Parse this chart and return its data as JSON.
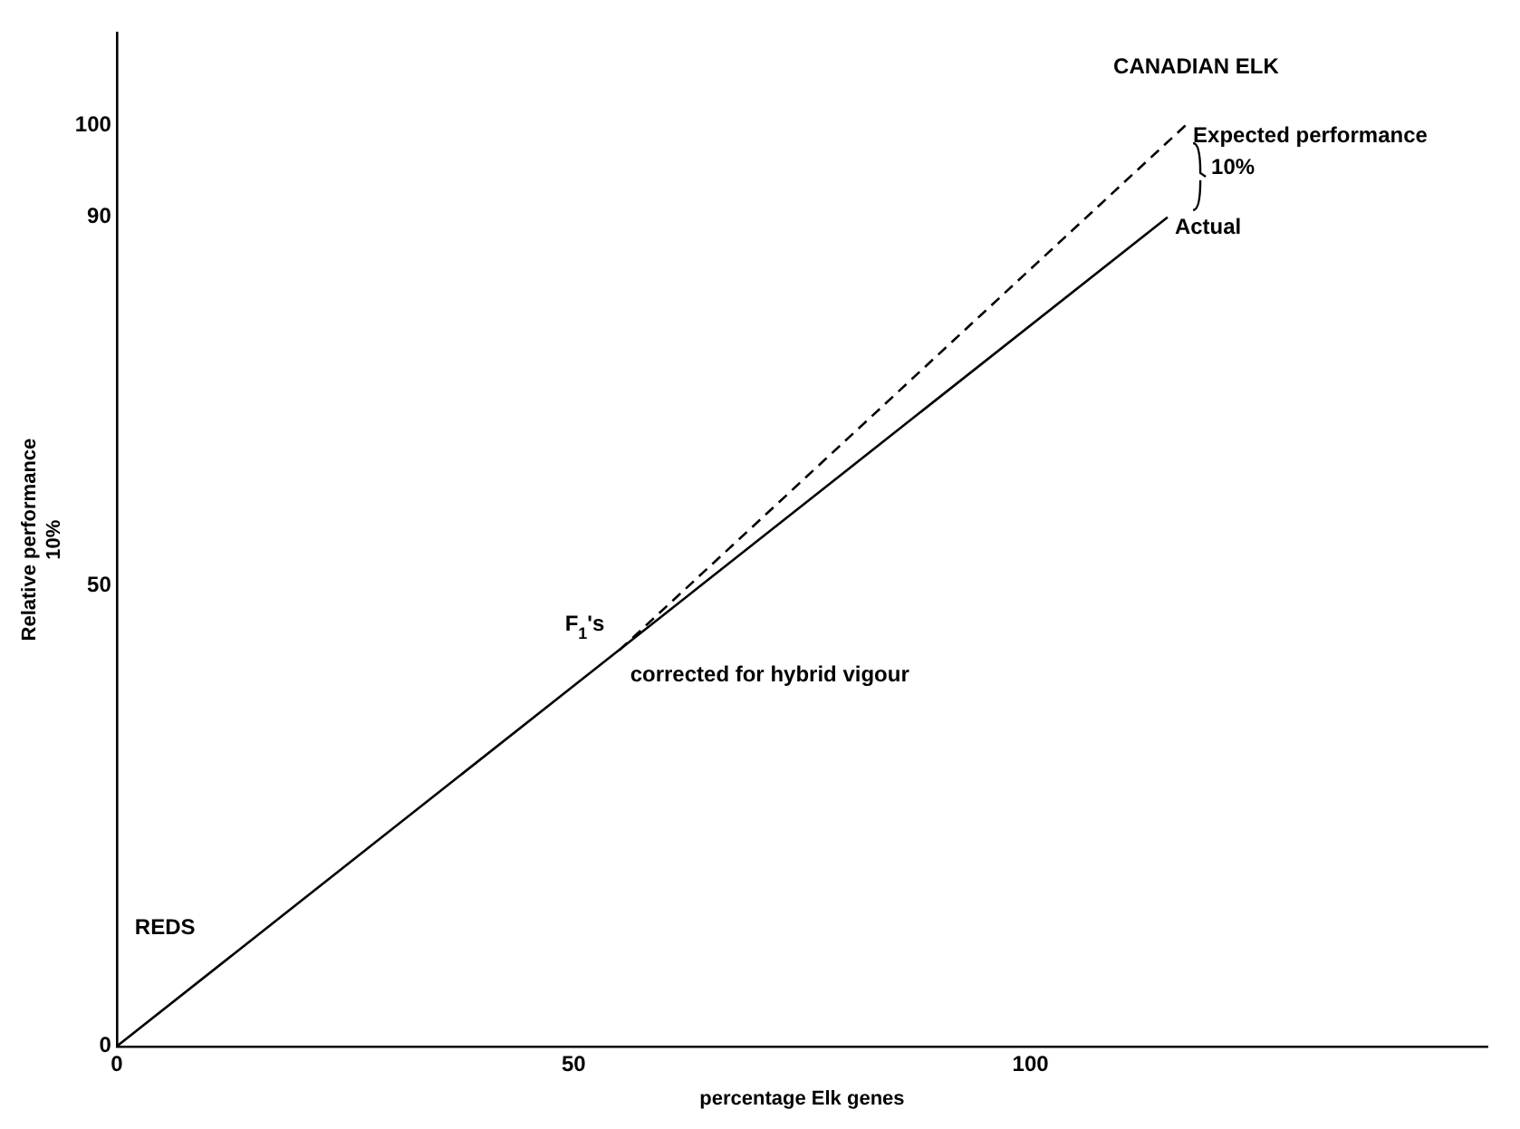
{
  "chart_data": {
    "type": "line",
    "xlabel": "percentage Elk genes",
    "ylabel": "Relative performance\n10%",
    "xlim": [
      0,
      150
    ],
    "xticks": [
      0,
      50,
      100
    ],
    "ylim": [
      0,
      110
    ],
    "yticks": [
      0,
      50,
      90,
      100
    ],
    "grid": false,
    "legend": "top right",
    "marker": "none",
    "series": [
      {
        "name": "Actual",
        "color": "#000000",
        "x": [
          0,
          115
        ],
        "values": [
          0,
          90
        ],
        "line_style": "solid"
      },
      {
        "name": "Expected performance",
        "color": "#000000",
        "x": [
          55,
          117
        ],
        "values": [
          43,
          100
        ],
        "line_style": "dashed"
      }
    ],
    "annotations": [
      "CANADIAN ELK",
      "10%",
      "F$_{1}$'s",
      "corrected for hybrid vigour",
      "REDS"
    ]
  }
}
